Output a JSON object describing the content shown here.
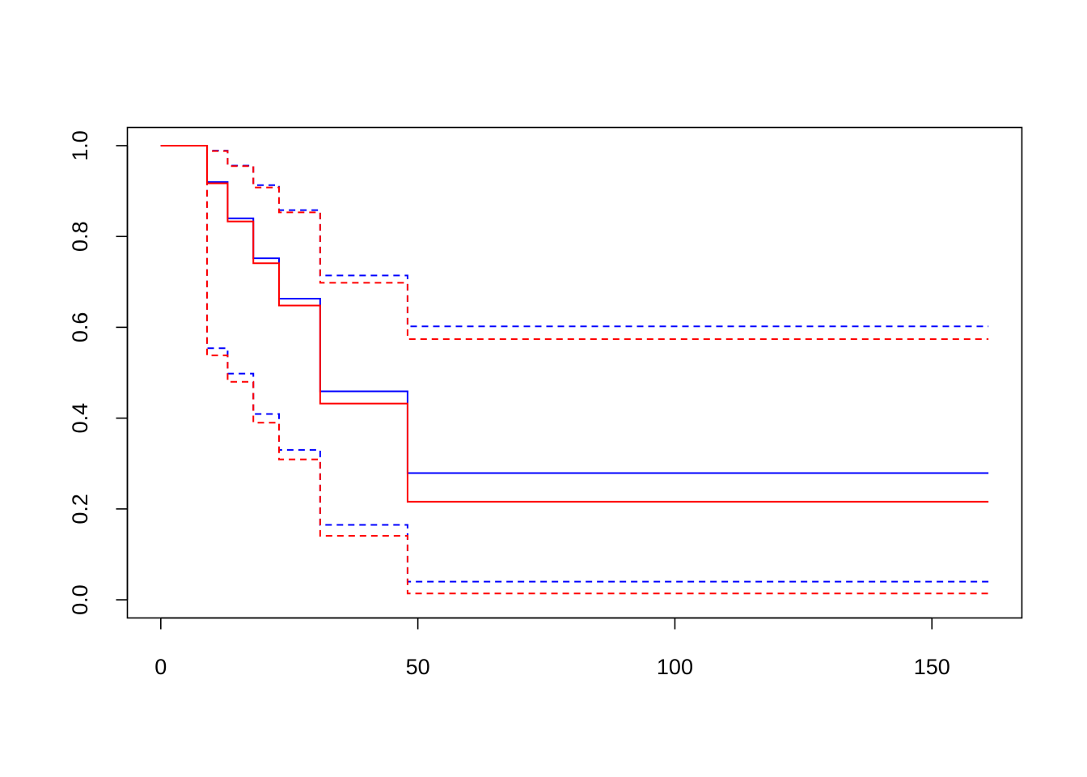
{
  "chart_data": {
    "type": "line",
    "title": "",
    "xlabel": "",
    "ylabel": "",
    "xlim": [
      -6.5,
      167.5
    ],
    "ylim": [
      -0.04,
      1.04
    ],
    "x_ticks": [
      0,
      50,
      100,
      150
    ],
    "x_tick_labels": [
      "0",
      "50",
      "100",
      "150"
    ],
    "y_ticks": [
      0.0,
      0.2,
      0.4,
      0.6,
      0.8,
      1.0
    ],
    "y_tick_labels": [
      "0.0",
      "0.2",
      "0.4",
      "0.6",
      "0.8",
      "1.0"
    ],
    "grid": false,
    "legend": "none",
    "step": true,
    "series": [
      {
        "color": "#0000FF",
        "line_style": "solid",
        "x": [
          0,
          9,
          13,
          18,
          23,
          31,
          48,
          161
        ],
        "y": [
          1.0,
          0.92,
          0.84,
          0.752,
          0.663,
          0.459,
          0.279,
          0.279
        ]
      },
      {
        "color": "#0000FF",
        "line_style": "dashed",
        "x": [
          0,
          9,
          13,
          18,
          23,
          31,
          48,
          161
        ],
        "y": [
          1.0,
          0.989,
          0.956,
          0.913,
          0.858,
          0.714,
          0.602,
          0.602
        ]
      },
      {
        "color": "#0000FF",
        "line_style": "dashed",
        "x": [
          0,
          9,
          13,
          18,
          23,
          31,
          48,
          161
        ],
        "y": [
          1.0,
          0.554,
          0.498,
          0.409,
          0.33,
          0.165,
          0.04,
          0.04
        ]
      },
      {
        "color": "#FF0000",
        "line_style": "solid",
        "x": [
          0,
          9,
          13,
          18,
          23,
          31,
          48,
          161
        ],
        "y": [
          1.0,
          0.917,
          0.833,
          0.741,
          0.648,
          0.432,
          0.216,
          0.216
        ]
      },
      {
        "color": "#FF0000",
        "line_style": "dashed",
        "x": [
          0,
          9,
          13,
          18,
          23,
          31,
          48,
          161
        ],
        "y": [
          1.0,
          0.988,
          0.955,
          0.908,
          0.853,
          0.698,
          0.574,
          0.574
        ]
      },
      {
        "color": "#FF0000",
        "line_style": "dashed",
        "x": [
          0,
          9,
          13,
          18,
          23,
          31,
          48,
          161
        ],
        "y": [
          1.0,
          0.538,
          0.48,
          0.39,
          0.309,
          0.141,
          0.014,
          0.014
        ]
      }
    ]
  }
}
